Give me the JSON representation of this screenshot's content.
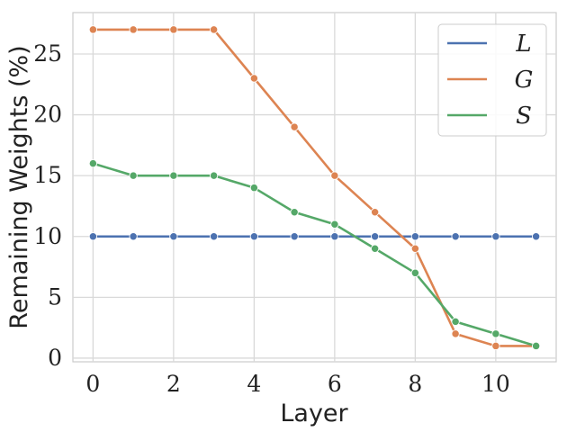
{
  "chart_data": {
    "type": "line",
    "xlabel": "Layer",
    "ylabel": "Remaining Weights (%)",
    "x": [
      0,
      1,
      2,
      3,
      4,
      5,
      6,
      7,
      8,
      9,
      10,
      11
    ],
    "xlim": [
      -0.5,
      11.5
    ],
    "ylim": [
      -0.3,
      28.4
    ],
    "xticks": [
      0,
      2,
      4,
      6,
      8,
      10
    ],
    "yticks": [
      0,
      5,
      10,
      15,
      20,
      25
    ],
    "grid": true,
    "legend": {
      "placement": "top-right"
    },
    "series": [
      {
        "name": "L",
        "color": "#4c72b0",
        "values": [
          10,
          10,
          10,
          10,
          10,
          10,
          10,
          10,
          10,
          10,
          10,
          10
        ]
      },
      {
        "name": "G",
        "color": "#dd8452",
        "values": [
          27,
          27,
          27,
          27,
          23,
          19,
          15,
          12,
          9,
          2,
          1,
          1
        ]
      },
      {
        "name": "S",
        "color": "#55a868",
        "values": [
          16,
          15,
          15,
          15,
          14,
          12,
          11,
          9,
          7,
          3,
          2,
          1
        ]
      }
    ]
  }
}
